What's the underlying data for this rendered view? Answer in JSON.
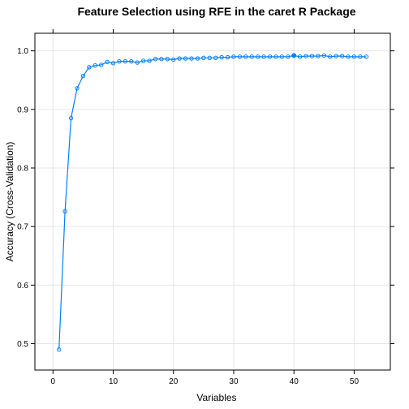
{
  "chart_data": {
    "type": "line",
    "title": "Feature Selection using RFE in the caret R Package",
    "xlabel": "Variables",
    "ylabel": "Accuracy (Cross-Validation)",
    "xlim": [
      -3,
      56
    ],
    "ylim": [
      0.455,
      1.03
    ],
    "xticks": [
      0,
      10,
      20,
      30,
      40,
      50
    ],
    "xtick_labels": [
      "0",
      "10",
      "20",
      "30",
      "40",
      "50"
    ],
    "yticks": [
      0.5,
      0.6,
      0.7,
      0.8,
      0.9,
      1.0
    ],
    "ytick_labels": [
      "0.5",
      "0.6",
      "0.7",
      "0.8",
      "0.9",
      "1.0"
    ],
    "grid": true,
    "line_color": "#0080ff",
    "series": [
      {
        "name": "",
        "x": [
          1,
          2,
          3,
          4,
          5,
          6,
          7,
          8,
          9,
          10,
          11,
          12,
          13,
          14,
          15,
          16,
          17,
          18,
          19,
          20,
          21,
          22,
          23,
          24,
          25,
          26,
          27,
          28,
          29,
          30,
          31,
          32,
          33,
          34,
          35,
          36,
          37,
          38,
          39,
          40,
          41,
          42,
          43,
          44,
          45,
          46,
          47,
          48,
          49,
          50,
          51,
          52
        ],
        "y": [
          0.49,
          0.726,
          0.885,
          0.936,
          0.957,
          0.972,
          0.975,
          0.976,
          0.981,
          0.979,
          0.982,
          0.982,
          0.982,
          0.98,
          0.983,
          0.983,
          0.986,
          0.986,
          0.986,
          0.985,
          0.987,
          0.987,
          0.987,
          0.987,
          0.988,
          0.988,
          0.988,
          0.989,
          0.989,
          0.99,
          0.99,
          0.99,
          0.99,
          0.99,
          0.99,
          0.99,
          0.99,
          0.99,
          0.99,
          0.992,
          0.99,
          0.991,
          0.991,
          0.991,
          0.992,
          0.99,
          0.991,
          0.991,
          0.99,
          0.99,
          0.99,
          0.99
        ]
      }
    ],
    "highlight": {
      "x": 40,
      "y": 0.992
    }
  }
}
